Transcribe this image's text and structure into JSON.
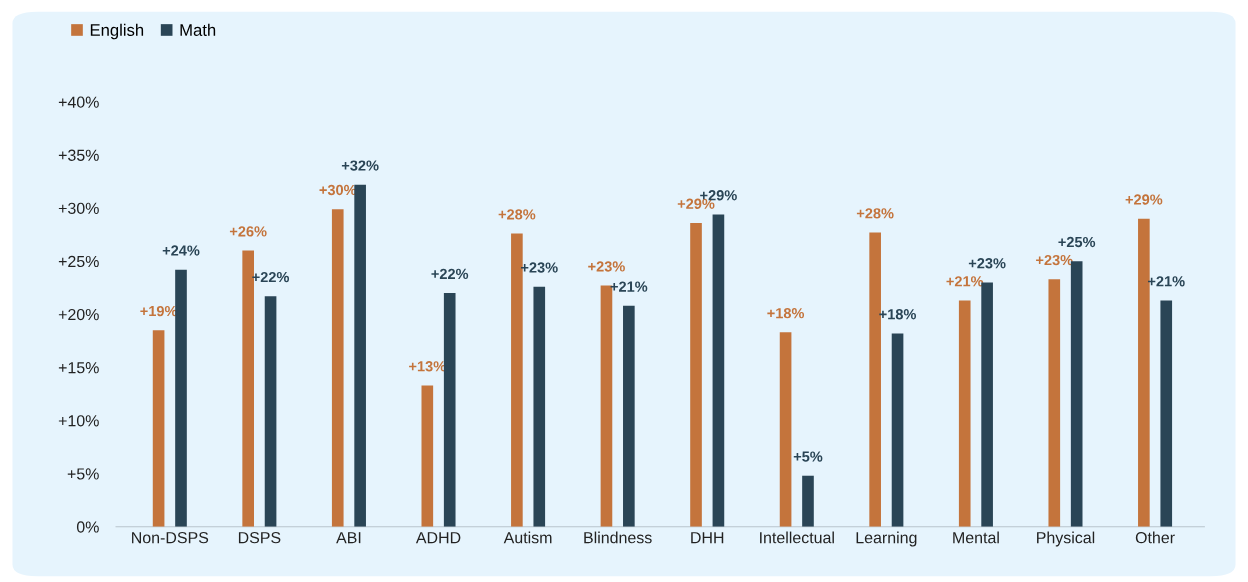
{
  "chart_data": {
    "type": "bar",
    "categories": [
      "Non-DSPS",
      "DSPS",
      "ABI",
      "ADHD",
      "Autism",
      "Blindness",
      "DHH",
      "Intellectual",
      "Learning",
      "Mental",
      "Physical",
      "Other"
    ],
    "series": [
      {
        "name": "English",
        "color": "#c4743c",
        "values": [
          18.5,
          26.0,
          29.9,
          13.3,
          27.6,
          22.7,
          28.6,
          18.3,
          27.7,
          21.3,
          23.3,
          29.0
        ],
        "value_labels": [
          "+19%",
          "+26%",
          "+30%",
          "+13%",
          "+28%",
          "+23%",
          "+29%",
          "+18%",
          "+28%",
          "+21%",
          "+23%",
          "+29%"
        ]
      },
      {
        "name": "Math",
        "color": "#2a4556",
        "values": [
          24.2,
          21.7,
          32.2,
          22.0,
          22.6,
          20.8,
          29.4,
          4.8,
          18.2,
          23.0,
          25.0,
          21.3
        ],
        "value_labels": [
          "+24%",
          "+22%",
          "+32%",
          "+22%",
          "+23%",
          "+21%",
          "+29%",
          "+5%",
          "+18%",
          "+23%",
          "+25%",
          "+21%"
        ]
      }
    ],
    "ylim": [
      0,
      40
    ],
    "yticks": [
      {
        "value": 0,
        "label": "0%"
      },
      {
        "value": 5,
        "label": "+5%"
      },
      {
        "value": 10,
        "label": "+10%"
      },
      {
        "value": 15,
        "label": "+15%"
      },
      {
        "value": 20,
        "label": "+20%"
      },
      {
        "value": 25,
        "label": "+25%"
      },
      {
        "value": 30,
        "label": "+30%"
      },
      {
        "value": 35,
        "label": "+35%"
      },
      {
        "value": 40,
        "label": "+40%"
      }
    ],
    "grid": false,
    "legend": "top left"
  }
}
